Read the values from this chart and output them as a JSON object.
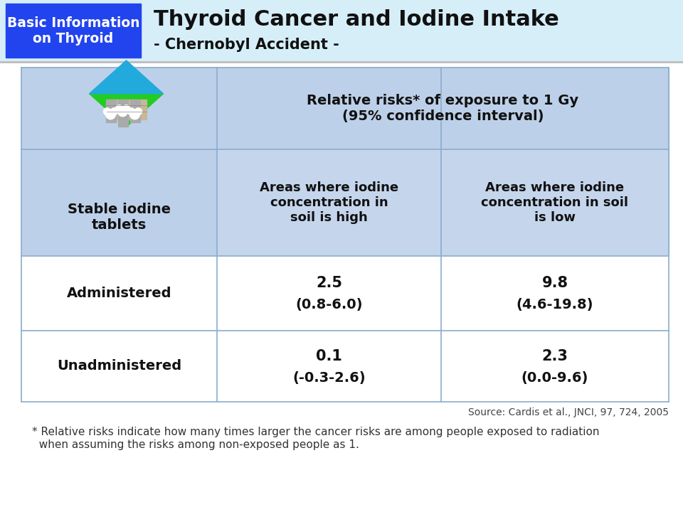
{
  "title_main": "Thyroid Cancer and Iodine Intake",
  "title_sub": "- Chernobyl Accident -",
  "header_box_text": "Basic Information\non Thyroid",
  "header_bg_color": "#d6eef8",
  "header_box_color": "#2244ee",
  "header_text_color": "#ffffff",
  "title_text_color": "#111111",
  "table_header_bg": "#bdd0e9",
  "table_col_header_bg": "#c5d5ec",
  "col1_header": "Stable iodine\ntablets",
  "col2_header": "Areas where iodine\nconcentration in\nsoil is high",
  "col3_header": "Areas where iodine\nconcentration in soil\nis low",
  "top_header": "Relative risks* of exposure to 1 Gy\n(95% confidence interval)",
  "rows": [
    {
      "label": "Administered",
      "val1": "2.5",
      "ci1": "(0.8-6.0)",
      "val2": "9.8",
      "ci2": "(4.6-19.8)"
    },
    {
      "label": "Unadministered",
      "val1": "0.1",
      "ci1": "(-0.3-2.6)",
      "val2": "2.3",
      "ci2": "(0.0-9.6)"
    }
  ],
  "source_text": "Source: Cardis et al., JNCI, 97, 724, 2005",
  "footnote_line1": "* Relative risks indicate how many times larger the cancer risks are among people exposed to radiation",
  "footnote_line2": "  when assuming the risks among non-exposed people as 1.",
  "bg_color": "#ffffff",
  "line_color": "#8aadcc",
  "separator_color": "#bbbbbb"
}
